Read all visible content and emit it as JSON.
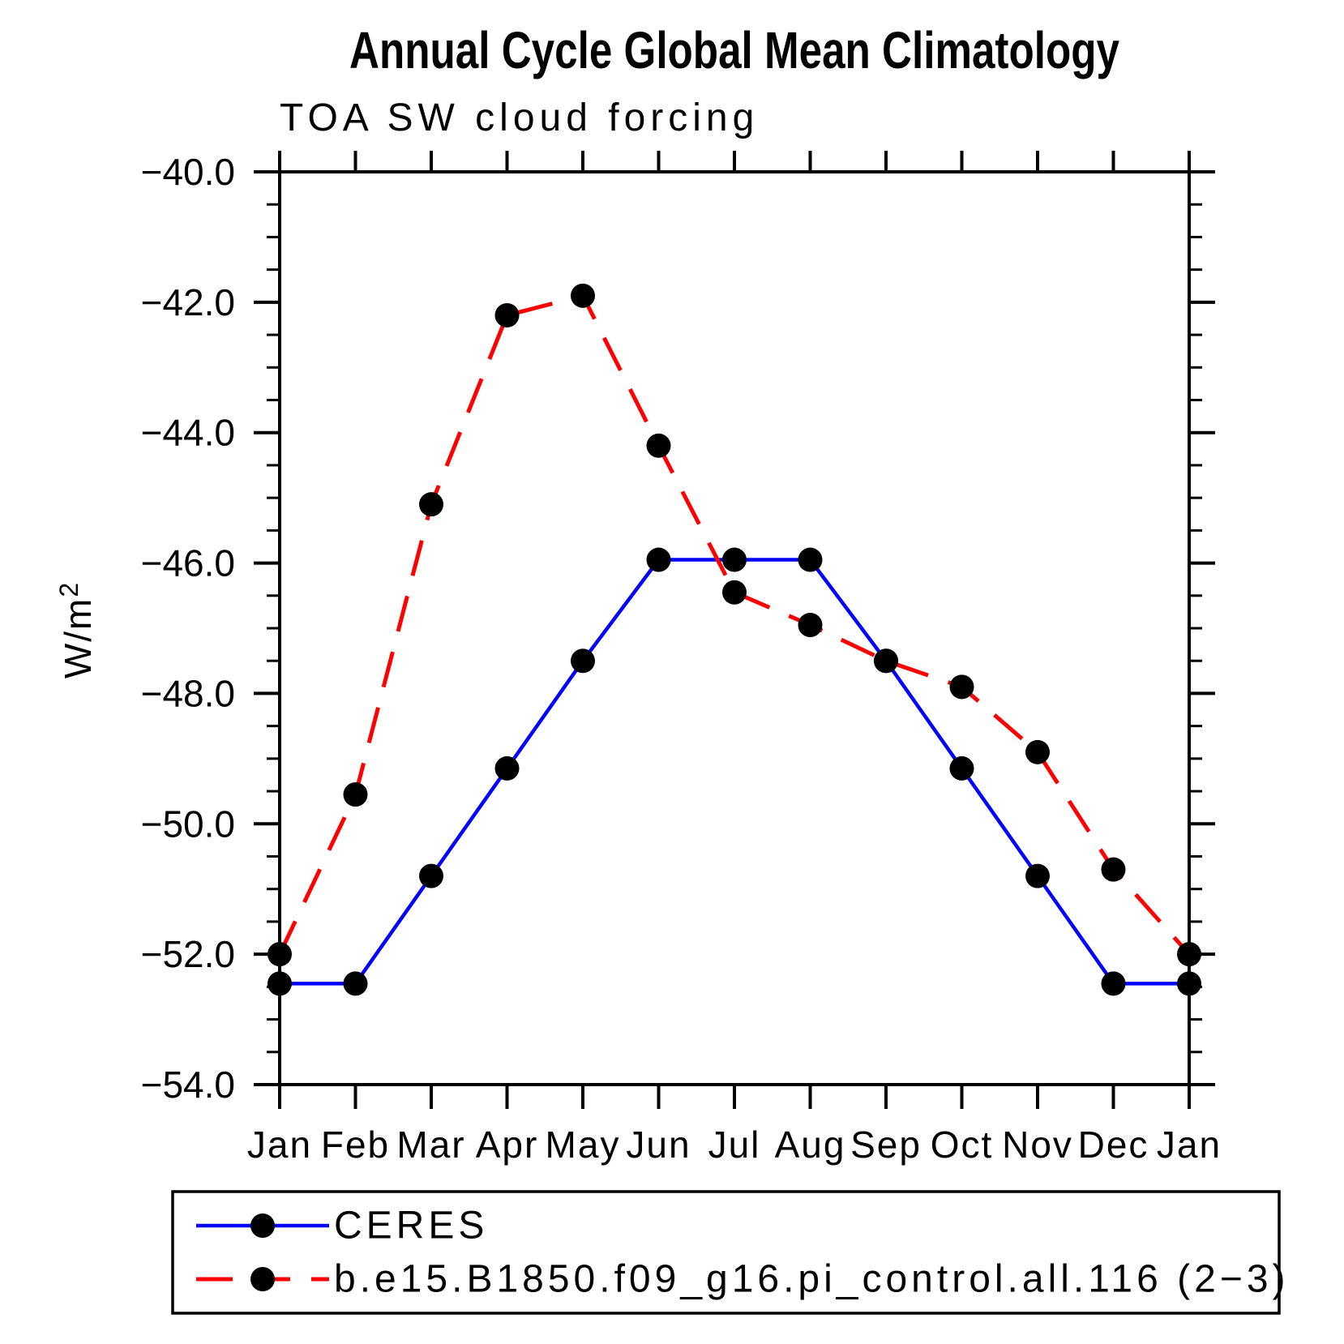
{
  "title": "Annual Cycle Global Mean Climatology",
  "subtitle": "TOA SW cloud forcing",
  "chart_data": {
    "type": "line",
    "x_categories": [
      "Jan",
      "Feb",
      "Mar",
      "Apr",
      "May",
      "Jun",
      "Jul",
      "Aug",
      "Sep",
      "Oct",
      "Nov",
      "Dec",
      "Jan"
    ],
    "ylabel_base": "W/m",
    "ylabel_exponent": "2",
    "ylim": [
      -54.0,
      -40.0
    ],
    "y_major_tick_step": 2.0,
    "y_minor_tick_step": 0.5,
    "y_tick_labels": [
      "−40.0",
      "−42.0",
      "−44.0",
      "−46.0",
      "−48.0",
      "−50.0",
      "−52.0",
      "−54.0"
    ],
    "grid": false,
    "legend_position": "bottom",
    "axis_color": "#000000",
    "marker": {
      "shape": "circle",
      "color": "#000000",
      "radius": 15
    },
    "series": [
      {
        "name": "CERES",
        "color": "#0000ff",
        "line_style": "solid",
        "values": [
          -52.45,
          -52.45,
          -50.8,
          -49.15,
          -47.5,
          -45.95,
          -45.95,
          -45.95,
          -47.5,
          -49.15,
          -50.8,
          -52.45,
          -52.45
        ]
      },
      {
        "name": "b.e15.B1850.f09_g16.pi_control.all.116 (2−3)",
        "color": "#ff0000",
        "line_style": "dashed",
        "values": [
          -52.0,
          -49.55,
          -45.1,
          -42.2,
          -41.9,
          -44.2,
          -46.45,
          -46.95,
          -47.5,
          -47.9,
          -48.9,
          -50.7,
          -52.0
        ]
      }
    ]
  }
}
